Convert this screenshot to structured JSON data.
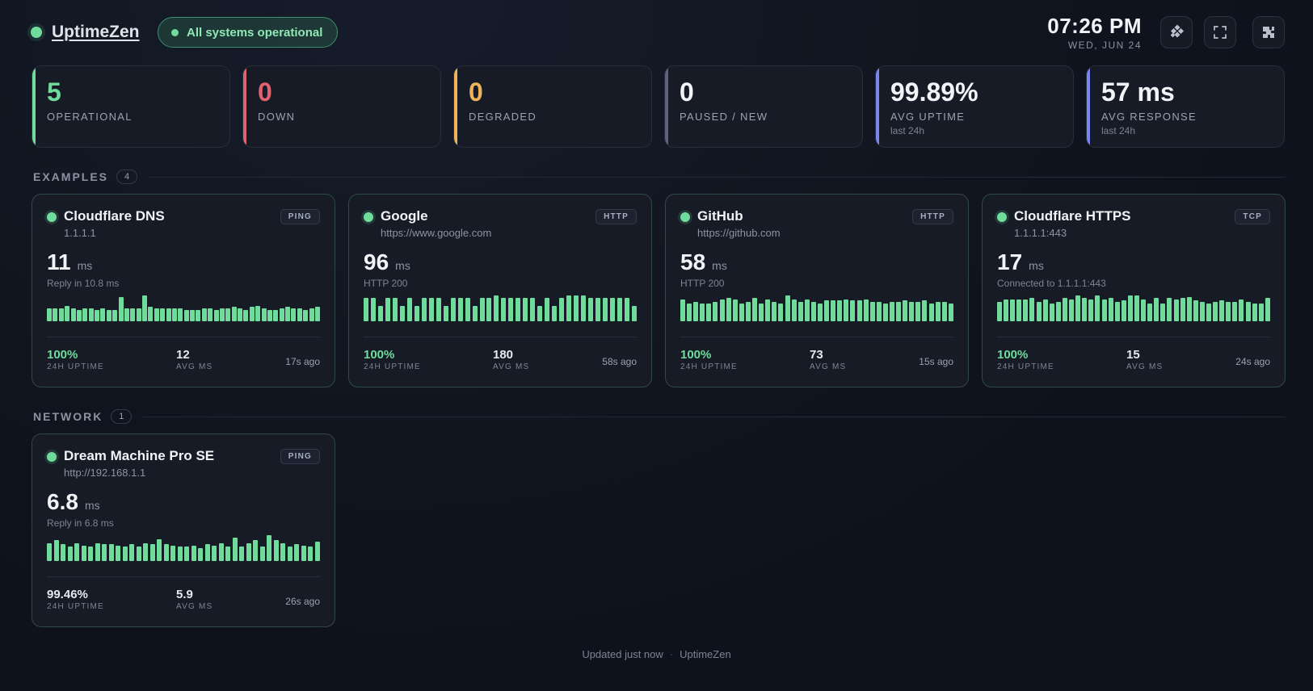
{
  "header": {
    "brand": "UptimeZen",
    "status": "All systems operational",
    "time": "07:26 PM",
    "date": "WED, JUN 24",
    "buttons": [
      {
        "icon": "theme-icon"
      },
      {
        "icon": "fullscreen-icon"
      },
      {
        "icon": "settings-icon"
      }
    ]
  },
  "stats": [
    {
      "value": "5",
      "label": "OPERATIONAL",
      "sub": "",
      "accent": "#6fdc9c",
      "color": "#6fdc9c"
    },
    {
      "value": "0",
      "label": "DOWN",
      "sub": "",
      "accent": "#e0616f",
      "color": "#e0616f"
    },
    {
      "value": "0",
      "label": "DEGRADED",
      "sub": "",
      "accent": "#f0b35a",
      "color": "#f0b35a"
    },
    {
      "value": "0",
      "label": "PAUSED / NEW",
      "sub": "",
      "accent": "#5b6478",
      "color": "#f1f3f7"
    },
    {
      "value": "99.89%",
      "label": "AVG UPTIME",
      "sub": "last 24h",
      "accent": "#7a86f0",
      "color": "#f1f3f7"
    },
    {
      "value": "57 ms",
      "label": "AVG RESPONSE",
      "sub": "last 24h",
      "accent": "#7a86f0",
      "color": "#f1f3f7"
    }
  ],
  "sections": [
    {
      "name": "EXAMPLES",
      "count": "4",
      "monitors": [
        {
          "name": "Cloudflare DNS",
          "target": "1.1.1.1",
          "type": "PING",
          "response": "11",
          "unit": "ms",
          "detail": "Reply in 10.8 ms",
          "history": [
            0.5,
            0.5,
            0.5,
            0.6,
            0.5,
            0.45,
            0.5,
            0.5,
            0.45,
            0.5,
            0.45,
            0.45,
            0.95,
            0.5,
            0.5,
            0.5,
            1.0,
            0.55,
            0.5,
            0.5,
            0.5,
            0.5,
            0.5,
            0.45,
            0.45,
            0.45,
            0.5,
            0.5,
            0.45,
            0.5,
            0.5,
            0.55,
            0.5,
            0.45,
            0.55,
            0.6,
            0.5,
            0.45,
            0.45,
            0.5,
            0.55,
            0.5,
            0.5,
            0.45,
            0.5,
            0.55
          ],
          "uptime": "100%",
          "uptime_label": "24H UPTIME",
          "avg": "12",
          "avg_label": "AVG MS",
          "ago": "17s ago"
        },
        {
          "name": "Google",
          "target": "https://www.google.com",
          "type": "HTTP",
          "response": "96",
          "unit": "ms",
          "detail": "HTTP 200",
          "history": [
            0.9,
            0.9,
            0.6,
            0.9,
            0.9,
            0.6,
            0.9,
            0.6,
            0.9,
            0.9,
            0.9,
            0.6,
            0.9,
            0.9,
            0.9,
            0.6,
            0.9,
            0.9,
            1.0,
            0.9,
            0.9,
            0.9,
            0.9,
            0.9,
            0.6,
            0.9,
            0.6,
            0.9,
            1.0,
            1.0,
            1.0,
            0.9,
            0.9,
            0.9,
            0.9,
            0.9,
            0.9,
            0.6
          ],
          "uptime": "100%",
          "uptime_label": "24H UPTIME",
          "avg": "180",
          "avg_label": "AVG MS",
          "ago": "58s ago"
        },
        {
          "name": "GitHub",
          "target": "https://github.com",
          "type": "HTTP",
          "response": "58",
          "unit": "ms",
          "detail": "HTTP 200",
          "history": [
            0.85,
            0.7,
            0.75,
            0.7,
            0.7,
            0.75,
            0.85,
            0.9,
            0.85,
            0.7,
            0.75,
            0.9,
            0.7,
            0.85,
            0.75,
            0.7,
            1.0,
            0.85,
            0.75,
            0.85,
            0.75,
            0.7,
            0.8,
            0.8,
            0.8,
            0.85,
            0.8,
            0.8,
            0.85,
            0.75,
            0.75,
            0.7,
            0.75,
            0.75,
            0.8,
            0.75,
            0.75,
            0.8,
            0.7,
            0.75,
            0.75,
            0.7
          ],
          "uptime": "100%",
          "uptime_label": "24H UPTIME",
          "avg": "73",
          "avg_label": "AVG MS",
          "ago": "15s ago"
        },
        {
          "name": "Cloudflare HTTPS",
          "target": "1.1.1.1:443",
          "type": "TCP",
          "response": "17",
          "unit": "ms",
          "detail": "Connected to 1.1.1.1:443",
          "history": [
            0.75,
            0.85,
            0.85,
            0.85,
            0.85,
            0.9,
            0.75,
            0.85,
            0.7,
            0.75,
            0.9,
            0.85,
            1.0,
            0.9,
            0.85,
            1.05,
            0.85,
            0.9,
            0.75,
            0.8,
            1.0,
            1.0,
            0.85,
            0.7,
            0.9,
            0.7,
            0.9,
            0.85,
            0.9,
            0.95,
            0.8,
            0.75,
            0.7,
            0.75,
            0.8,
            0.75,
            0.75,
            0.85,
            0.75,
            0.7,
            0.7,
            0.9
          ],
          "uptime": "100%",
          "uptime_label": "24H UPTIME",
          "avg": "15",
          "avg_label": "AVG MS",
          "ago": "24s ago"
        }
      ]
    },
    {
      "name": "NETWORK",
      "count": "1",
      "monitors": [
        {
          "name": "Dream Machine Pro SE",
          "target": "http://192.168.1.1",
          "type": "PING",
          "response": "6.8",
          "unit": "ms",
          "detail": "Reply in 6.8 ms",
          "history": [
            0.7,
            0.8,
            0.65,
            0.55,
            0.7,
            0.6,
            0.55,
            0.7,
            0.65,
            0.65,
            0.6,
            0.55,
            0.65,
            0.55,
            0.7,
            0.65,
            0.85,
            0.65,
            0.6,
            0.55,
            0.55,
            0.6,
            0.5,
            0.65,
            0.6,
            0.7,
            0.55,
            0.9,
            0.55,
            0.7,
            0.8,
            0.55,
            1.0,
            0.8,
            0.7,
            0.55,
            0.65,
            0.6,
            0.55,
            0.75
          ],
          "uptime": "99.46%",
          "uptime_label": "24H UPTIME",
          "avg": "5.9",
          "avg_label": "AVG MS",
          "ago": "26s ago"
        }
      ]
    }
  ],
  "footer": {
    "updated": "Updated just now",
    "brand": "UptimeZen"
  }
}
